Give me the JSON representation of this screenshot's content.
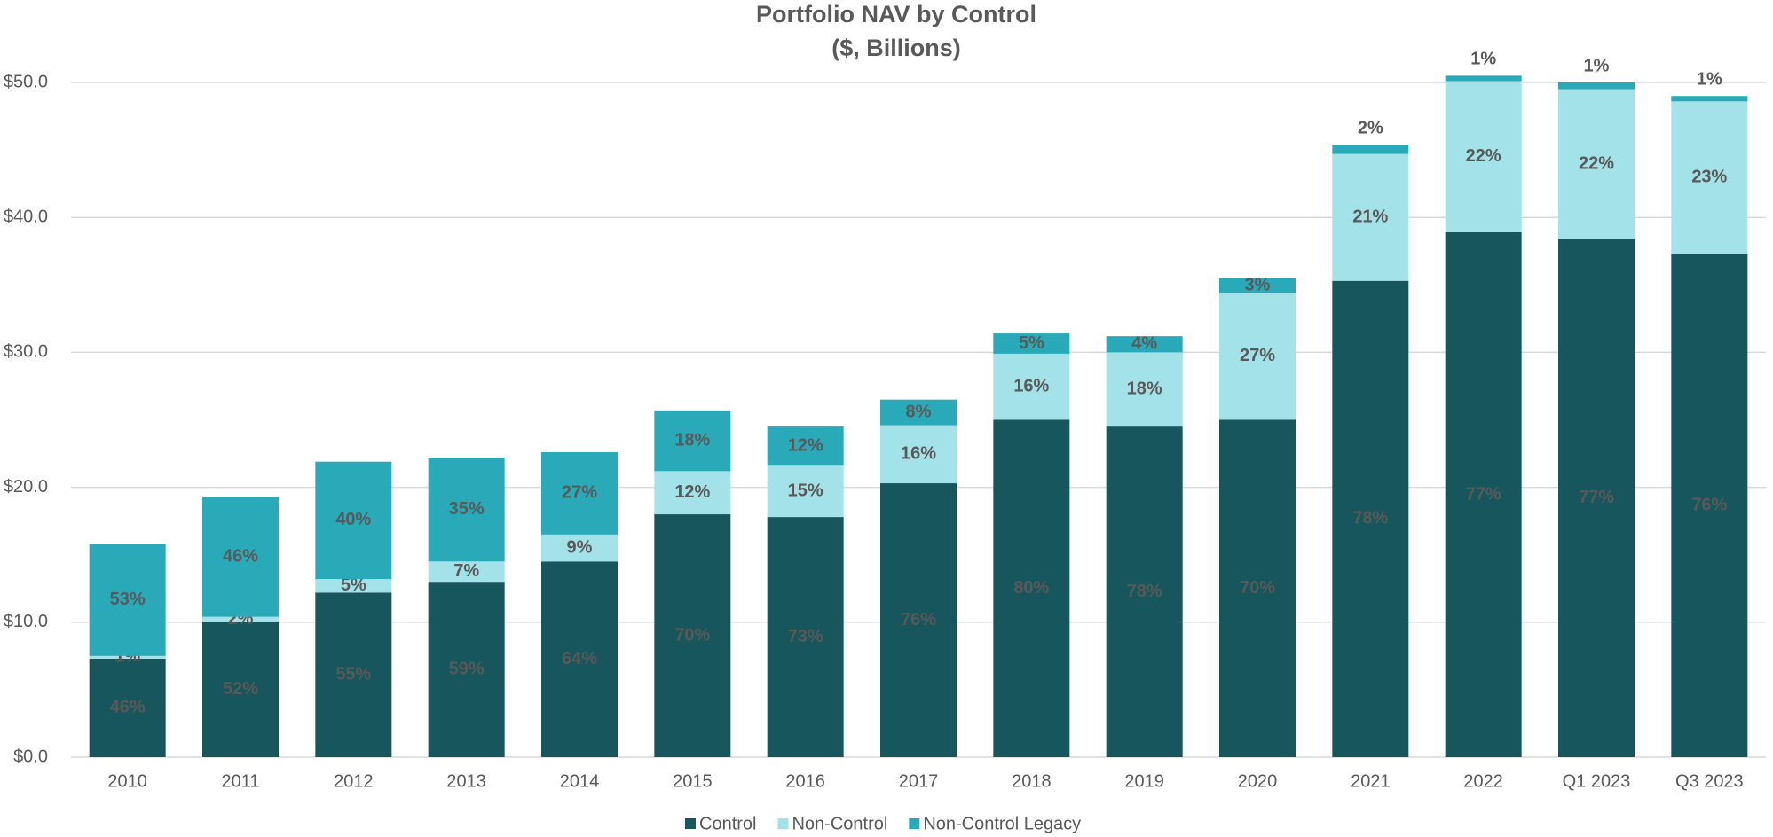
{
  "chart_data": {
    "type": "bar",
    "stacked": true,
    "title": "Portfolio NAV by Control",
    "subtitle": "($, Billions)",
    "categories": [
      "2010",
      "2011",
      "2012",
      "2013",
      "2014",
      "2015",
      "2016",
      "2017",
      "2018",
      "2019",
      "2020",
      "2021",
      "2022",
      "Q1 2023",
      "Q3 2023"
    ],
    "series": [
      {
        "name": "Control",
        "color": "#17565c",
        "label_color": "#ffffff",
        "values": [
          7.3,
          10.0,
          12.2,
          13.0,
          14.5,
          18.0,
          17.8,
          20.3,
          25.0,
          24.5,
          25.0,
          35.3,
          38.9,
          38.4,
          37.3
        ],
        "share_labels": [
          "46%",
          "52%",
          "55%",
          "59%",
          "64%",
          "70%",
          "73%",
          "76%",
          "80%",
          "78%",
          "70%",
          "78%",
          "77%",
          "77%",
          "76%"
        ]
      },
      {
        "name": "Non-Control",
        "color": "#a3e2e8",
        "label_color": "#404040",
        "values": [
          0.2,
          0.4,
          1.0,
          1.5,
          2.0,
          3.2,
          3.8,
          4.3,
          4.9,
          5.5,
          9.4,
          9.4,
          11.2,
          11.1,
          11.3
        ],
        "share_labels": [
          "1%",
          "2%",
          "5%",
          "7%",
          "9%",
          "12%",
          "15%",
          "16%",
          "16%",
          "18%",
          "27%",
          "21%",
          "22%",
          "22%",
          "23%"
        ]
      },
      {
        "name": "Non-Control Legacy",
        "color": "#2aa9b8",
        "label_color": "#ffffff",
        "values": [
          8.3,
          8.9,
          8.7,
          7.7,
          6.1,
          4.5,
          2.9,
          1.9,
          1.5,
          1.2,
          1.1,
          0.7,
          0.4,
          0.5,
          0.4
        ],
        "share_labels": [
          "53%",
          "46%",
          "40%",
          "35%",
          "27%",
          "18%",
          "12%",
          "8%",
          "5%",
          "4%",
          "3%",
          "2%",
          "1%",
          "1%",
          "1%"
        ]
      }
    ],
    "ylim": [
      0,
      50
    ],
    "yticks": [
      {
        "value": 0,
        "label": "$0.0"
      },
      {
        "value": 10,
        "label": "$10.0"
      },
      {
        "value": 20,
        "label": "$20.0"
      },
      {
        "value": 30,
        "label": "$30.0"
      },
      {
        "value": 40,
        "label": "$40.0"
      },
      {
        "value": 50,
        "label": "$50.0"
      }
    ],
    "grid": true,
    "legend": "bottom"
  }
}
